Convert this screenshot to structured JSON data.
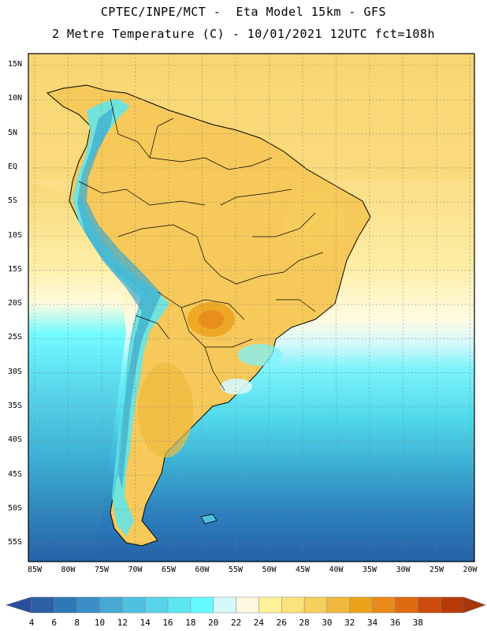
{
  "header": {
    "line1": "CPTEC/INPE/MCT -  Eta Model 15km - GFS",
    "line2": "2 Metre Temperature (C) - 10/01/2021 12UTC fct=108h"
  },
  "axes": {
    "lat_labels": [
      "15N",
      "10N",
      "5N",
      "EQ",
      "5S",
      "10S",
      "15S",
      "20S",
      "25S",
      "30S",
      "35S",
      "40S",
      "45S",
      "50S",
      "55S"
    ],
    "lon_labels": [
      "85W",
      "80W",
      "75W",
      "70W",
      "65W",
      "60W",
      "55W",
      "50W",
      "45W",
      "40W",
      "35W",
      "30W",
      "25W",
      "20W"
    ]
  },
  "map": {
    "region": "South America",
    "grid": true,
    "ocean_gradient": [
      "#fbe18a",
      "#fdf0a8",
      "#fffbe0",
      "#d9f7fb",
      "#7cf3fb",
      "#4fd8ea",
      "#3aaad0",
      "#2d82bf",
      "#2560a6"
    ]
  },
  "colorbar": {
    "labels": [
      "4",
      "6",
      "8",
      "10",
      "12",
      "14",
      "16",
      "18",
      "20",
      "22",
      "24",
      "26",
      "28",
      "30",
      "32",
      "34",
      "36",
      "38"
    ],
    "colors": [
      "#2c5fa4",
      "#2f78b7",
      "#3b8ec6",
      "#47a8d4",
      "#4fc0e0",
      "#58d4ea",
      "#5ce6f0",
      "#66fbff",
      "#d6f8fc",
      "#fff8e0",
      "#fff29a",
      "#fce27a",
      "#f7cf5c",
      "#f0b93d",
      "#eca21c",
      "#e88a1c",
      "#df6a12",
      "#cc4b0a",
      "#b83a06"
    ],
    "left_tip": "#2a4fa0",
    "right_tip": "#a8360a"
  }
}
